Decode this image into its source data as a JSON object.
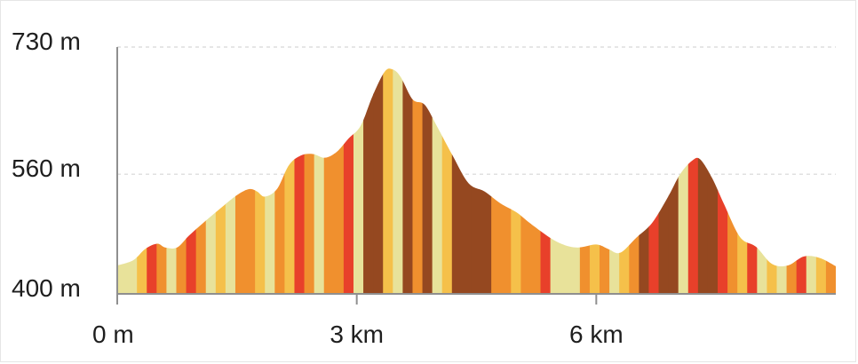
{
  "chart_data": {
    "type": "area",
    "title": "",
    "xlabel": "",
    "ylabel": "",
    "x_unit": "km",
    "y_unit": "m",
    "xlim": [
      0,
      9
    ],
    "ylim": [
      400,
      730
    ],
    "x_ticks": [
      {
        "value": 0,
        "label": "0 m"
      },
      {
        "value": 3,
        "label": "3 km"
      },
      {
        "value": 6,
        "label": "6 km"
      }
    ],
    "y_ticks": [
      {
        "value": 730,
        "label": "730 m"
      },
      {
        "value": 560,
        "label": "560 m"
      },
      {
        "value": 400,
        "label": "400 m"
      }
    ],
    "grid": {
      "horizontal": true,
      "vertical": false
    },
    "segment_colors": [
      "#e8e29a",
      "#f5c04a",
      "#f0902e",
      "#e8402a",
      "#954820"
    ],
    "series": [
      {
        "x": [
          0,
          0.2,
          0.35,
          0.5,
          0.6,
          0.75,
          0.9,
          1.1,
          1.3,
          1.5,
          1.65,
          1.75,
          1.85,
          2.0,
          2.15,
          2.3,
          2.45,
          2.6,
          2.75,
          2.9,
          3.05,
          3.2,
          3.35,
          3.45,
          3.55,
          3.7,
          3.85,
          4.0,
          4.2,
          4.4,
          4.6,
          4.8,
          5.0,
          5.2,
          5.5,
          5.75,
          6.0,
          6.15,
          6.3,
          6.5,
          6.7,
          6.9,
          7.05,
          7.2,
          7.3,
          7.45,
          7.6,
          7.8,
          8.0,
          8.2,
          8.4,
          8.6,
          8.8,
          9.0
        ],
        "y": [
          438,
          445,
          460,
          467,
          462,
          462,
          478,
          497,
          515,
          532,
          540,
          537,
          530,
          540,
          572,
          585,
          587,
          582,
          590,
          608,
          625,
          665,
          697,
          700,
          690,
          660,
          653,
          625,
          585,
          548,
          537,
          521,
          509,
          492,
          470,
          462,
          466,
          460,
          455,
          475,
          495,
          530,
          560,
          578,
          580,
          555,
          520,
          476,
          463,
          440,
          438,
          450,
          448,
          437
        ]
      }
    ]
  }
}
